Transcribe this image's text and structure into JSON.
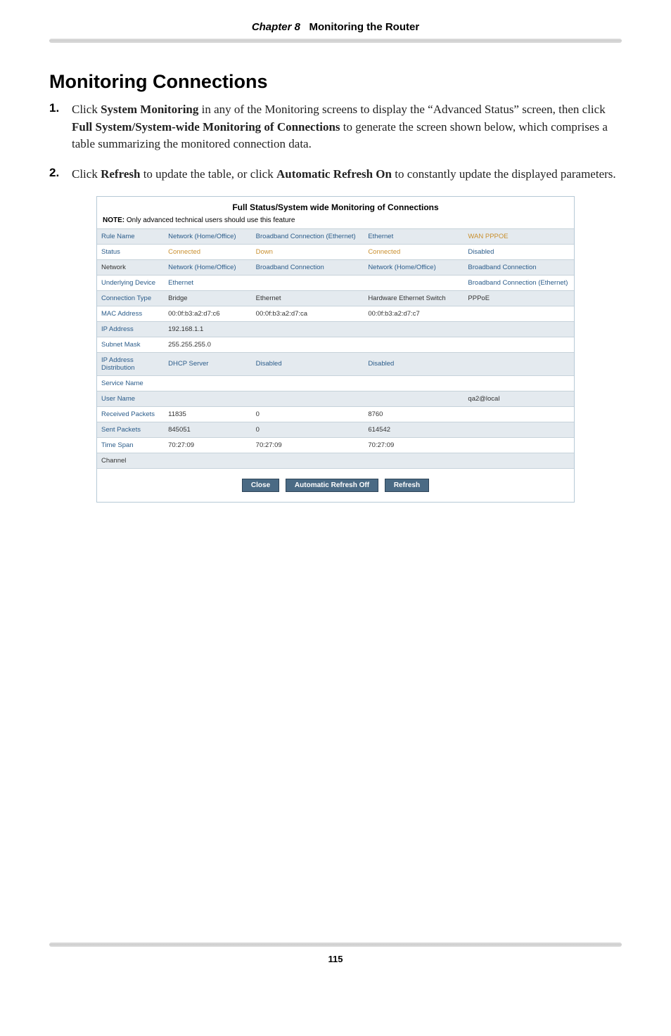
{
  "header": {
    "chapter_label": "Chapter 8",
    "chapter_title": "Monitoring the Router"
  },
  "heading": "Monitoring Connections",
  "steps": [
    {
      "num": "1.",
      "prefix": "Click ",
      "b1": "System Monitoring",
      "mid1": " in any of the Monitoring screens to display the “Advanced Status” screen, then click ",
      "b2": "Full System/System-wide Monitoring of Connections",
      "mid2": " to generate the screen shown below,  which comprises a table summarizing the monitored connection data."
    },
    {
      "num": "2.",
      "prefix": "Click ",
      "b1": "Refresh",
      "mid1": " to update the table, or click ",
      "b2": "Automatic Refresh On",
      "mid2": " to constantly update the displayed parameters."
    }
  ],
  "screenshot": {
    "title": "Full Status/System wide Monitoring of Connections",
    "note_label": "NOTE:",
    "note_text": " Only advanced technical users should use this feature",
    "columns": [
      "",
      "col2",
      "col3",
      "col4",
      "col5"
    ],
    "rows": [
      {
        "label": "Rule Name",
        "cells": [
          {
            "text": "Network (Home/Office)",
            "cls": "link-blue"
          },
          {
            "text": "Broadband Connection (Ethernet)",
            "cls": "link-blue"
          },
          {
            "text": "Ethernet",
            "cls": "link-blue"
          },
          {
            "text": "WAN PPPOE",
            "cls": "link-orange"
          }
        ]
      },
      {
        "label": "Status",
        "cells": [
          {
            "text": "Connected",
            "cls": "link-orange"
          },
          {
            "text": "Down",
            "cls": "link-orange"
          },
          {
            "text": "Connected",
            "cls": "link-orange"
          },
          {
            "text": "Disabled",
            "cls": "link-blue"
          }
        ]
      },
      {
        "label": "Network",
        "label_cls": "txt",
        "cells": [
          {
            "text": "Network (Home/Office)",
            "cls": "link-blue"
          },
          {
            "text": "Broadband Connection",
            "cls": "link-blue"
          },
          {
            "text": "Network (Home/Office)",
            "cls": "link-blue"
          },
          {
            "text": "Broadband Connection",
            "cls": "link-blue"
          }
        ]
      },
      {
        "label": "Underlying Device",
        "cells": [
          {
            "text": "Ethernet",
            "cls": "link-blue",
            "colspan": 3
          },
          {
            "text": "Broadband Connection (Ethernet)",
            "cls": "link-blue"
          }
        ]
      },
      {
        "label": "Connection Type",
        "cells": [
          {
            "text": "Bridge",
            "cls": "txt"
          },
          {
            "text": "Ethernet",
            "cls": "txt"
          },
          {
            "text": "Hardware Ethernet Switch",
            "cls": "txt"
          },
          {
            "text": "PPPoE",
            "cls": "txt"
          }
        ]
      },
      {
        "label": "MAC Address",
        "cells": [
          {
            "text": "00:0f:b3:a2:d7:c6",
            "cls": "txt"
          },
          {
            "text": "00:0f:b3:a2:d7:ca",
            "cls": "txt"
          },
          {
            "text": "00:0f:b3:a2:d7:c7",
            "cls": "txt"
          },
          {
            "text": "",
            "cls": "txt"
          }
        ]
      },
      {
        "label": "IP Address",
        "cells": [
          {
            "text": "192.168.1.1",
            "cls": "txt"
          },
          {
            "text": "",
            "cls": "txt"
          },
          {
            "text": "",
            "cls": "txt"
          },
          {
            "text": "",
            "cls": "txt"
          }
        ]
      },
      {
        "label": "Subnet Mask",
        "cells": [
          {
            "text": "255.255.255.0",
            "cls": "txt"
          },
          {
            "text": "",
            "cls": "txt"
          },
          {
            "text": "",
            "cls": "txt"
          },
          {
            "text": "",
            "cls": "txt"
          }
        ]
      },
      {
        "label": "IP Address Distribution",
        "cells": [
          {
            "text": "DHCP Server",
            "cls": "link-blue"
          },
          {
            "text": "Disabled",
            "cls": "link-blue"
          },
          {
            "text": "Disabled",
            "cls": "link-blue"
          },
          {
            "text": "",
            "cls": "txt"
          }
        ]
      },
      {
        "label": "Service Name",
        "cells": [
          {
            "text": "",
            "cls": "txt"
          },
          {
            "text": "",
            "cls": "txt"
          },
          {
            "text": "",
            "cls": "txt"
          },
          {
            "text": "",
            "cls": "txt"
          }
        ]
      },
      {
        "label": "User Name",
        "cells": [
          {
            "text": "",
            "cls": "txt"
          },
          {
            "text": "",
            "cls": "txt"
          },
          {
            "text": "",
            "cls": "txt"
          },
          {
            "text": "qa2@local",
            "cls": "txt"
          }
        ]
      },
      {
        "label": "Received Packets",
        "cells": [
          {
            "text": "11835",
            "cls": "txt"
          },
          {
            "text": "0",
            "cls": "txt"
          },
          {
            "text": "8760",
            "cls": "txt"
          },
          {
            "text": "",
            "cls": "txt"
          }
        ]
      },
      {
        "label": "Sent Packets",
        "cells": [
          {
            "text": "845051",
            "cls": "txt"
          },
          {
            "text": "0",
            "cls": "txt"
          },
          {
            "text": "614542",
            "cls": "txt"
          },
          {
            "text": "",
            "cls": "txt"
          }
        ]
      },
      {
        "label": "Time Span",
        "cells": [
          {
            "text": "70:27:09",
            "cls": "txt"
          },
          {
            "text": "70:27:09",
            "cls": "txt"
          },
          {
            "text": "70:27:09",
            "cls": "txt"
          },
          {
            "text": "",
            "cls": "txt"
          }
        ]
      },
      {
        "label": "Channel",
        "label_cls": "txt",
        "cells": [
          {
            "text": "",
            "cls": "txt"
          },
          {
            "text": "",
            "cls": "txt"
          },
          {
            "text": "",
            "cls": "txt"
          },
          {
            "text": "",
            "cls": "txt"
          }
        ]
      }
    ],
    "buttons": {
      "close": "Close",
      "auto_refresh": "Automatic Refresh Off",
      "refresh": "Refresh"
    }
  },
  "footer": {
    "page_number": "115"
  }
}
